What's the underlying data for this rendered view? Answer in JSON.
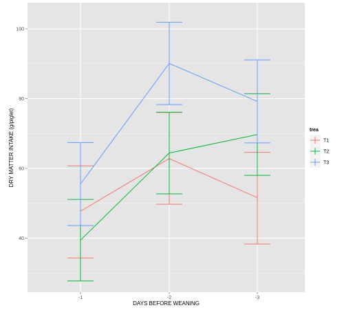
{
  "chart_data": {
    "type": "line",
    "categories": [
      "-1",
      "-2",
      "-3"
    ],
    "xlabel": "DAYS BEFORE WEANING",
    "ylabel": "DRY MATTER INTAKE (g/piglet)",
    "ylim": [
      24.5,
      107.5
    ],
    "yticks": [
      40,
      60,
      80,
      100
    ],
    "grid": true,
    "legend": {
      "title": "trea",
      "position": "right"
    },
    "series": [
      {
        "name": "T1",
        "color": "#F8766D",
        "values": [
          47.7,
          62.8,
          51.6
        ],
        "lower": [
          34.3,
          49.7,
          38.3
        ],
        "upper": [
          60.7,
          76.0,
          64.6
        ]
      },
      {
        "name": "T2",
        "color": "#00BA38",
        "values": [
          39.4,
          64.4,
          69.7
        ],
        "lower": [
          27.7,
          52.7,
          58.0
        ],
        "upper": [
          51.1,
          76.1,
          81.4
        ]
      },
      {
        "name": "T3",
        "color": "#619CFF",
        "values": [
          55.5,
          90.1,
          79.2
        ],
        "lower": [
          43.6,
          78.3,
          67.3
        ],
        "upper": [
          67.4,
          101.9,
          91.1
        ]
      }
    ]
  }
}
